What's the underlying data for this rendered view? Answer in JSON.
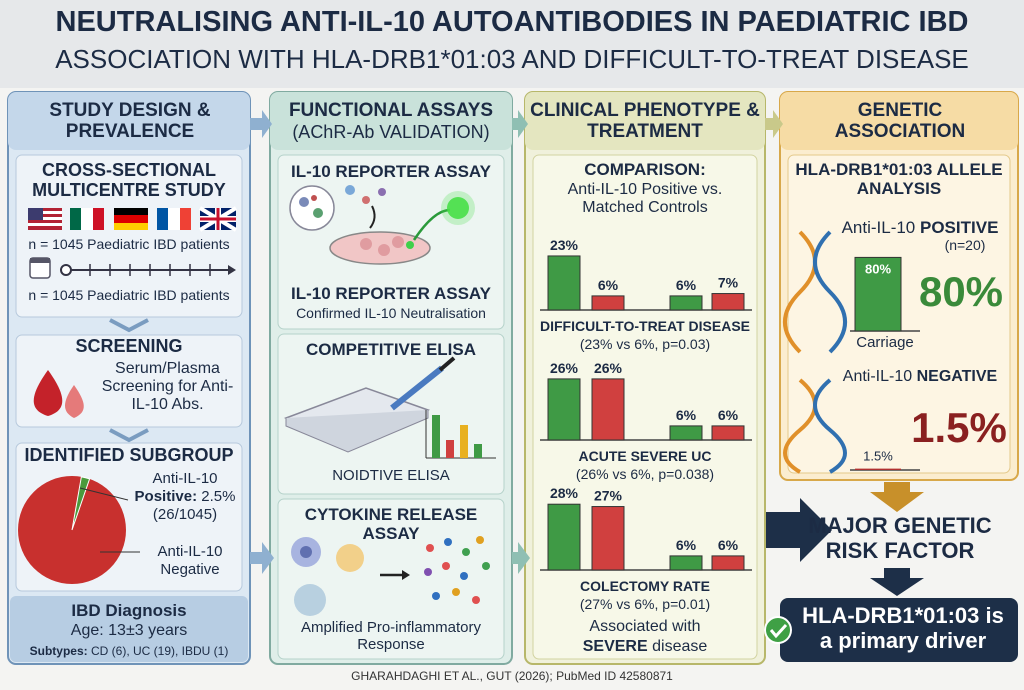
{
  "header": {
    "title": "NEUTRALISING ANTI-IL-10 AUTOANTIBODIES IN PAEDIATRIC IBD",
    "subtitle": "ASSOCIATION WITH HLA-DRB1*01:03 AND DIFFICULT-TO-TREAT DISEASE"
  },
  "study": {
    "title": "STUDY DESIGN & PREVALENCE",
    "design": {
      "title": "CROSS-SECTIONAL MULTICENTRE STUDY",
      "cohort": "n = 1045 Paediatric IBD patients",
      "timeline": "n = 1045 Paediatric IBD patients"
    },
    "screening": {
      "title": "SCREENING",
      "text": "Serum/Plasma Screening for Anti-IL-10 Abs."
    },
    "subgroup": {
      "title": "IDENTIFIED SUBGROUP",
      "positive_name": "Anti-IL-10",
      "positive_word": "Positive:",
      "positive_value": 2.5,
      "positive_label": "2.5%",
      "positive_count": "(26/1045)",
      "negative_label": "Anti-IL-10 Negative",
      "positive_color": "#4a9a3c",
      "negative_color": "#c8302e"
    },
    "diagnosis": {
      "title": "IBD Diagnosis",
      "age": "Age: 13±3 years",
      "subtypes_label": "Subtypes:",
      "subtypes": "CD (6), UC (19), IBDU (1)"
    }
  },
  "assays": {
    "title": "FUNCTIONAL ASSAYS",
    "subtitle": "(AChR-Ab VALIDATION)",
    "reporter": {
      "title": "IL-10 REPORTER ASSAY",
      "caption": "IL-10 REPORTER ASSAY",
      "note": "Confirmed IL-10 Neutralisation"
    },
    "elisa": {
      "title": "COMPETITIVE ELISA",
      "caption": "NOIDTIVE ELISA"
    },
    "cytokine": {
      "title": "CYTOKINE RELEASE ASSAY",
      "note": "Amplified Pro-inflammatory Response"
    }
  },
  "clinical": {
    "title": "CLINICAL PHENOTYPE & TREATMENT",
    "comparison_title": "COMPARISON:",
    "comparison_text": "Anti-IL-10 Positive vs. Matched Controls",
    "colors": [
      "#3f9a45",
      "#d0403f",
      "#3f9a45",
      "#d0403f"
    ],
    "groups": [
      {
        "values": [
          23,
          6,
          6,
          7
        ],
        "value_labels": [
          "23%",
          "6%",
          "6%",
          "7%"
        ],
        "title": "DIFFICULT-TO-TREAT DISEASE",
        "note": "(23% vs 6%, p=0.03)"
      },
      {
        "values": [
          26,
          26,
          6,
          6
        ],
        "value_labels": [
          "26%",
          "26%",
          "6%",
          "6%"
        ],
        "title": "ACUTE SEVERE UC",
        "note": "(26% vs 6%, p=0.038)"
      },
      {
        "values": [
          28,
          27,
          6,
          6
        ],
        "value_labels": [
          "28%",
          "27%",
          "6%",
          "6%"
        ],
        "title": "COLECTOMY RATE",
        "note": "(27% vs 6%, p=0.01)"
      }
    ],
    "footer_a": "Associated with",
    "footer_b": "SEVERE",
    "footer_c": "disease"
  },
  "genetic": {
    "title": "GENETIC ASSOCIATION",
    "subtitle": "HLA-DRB1*01:03 ALLELE ANALYSIS",
    "positive": {
      "name": "Anti-IL-10",
      "status": "POSITIVE",
      "n": "(n=20)",
      "value": 80,
      "label": "80%",
      "caption": "Carriage",
      "color": "#3f9a45"
    },
    "negative": {
      "name": "Anti-IL-10",
      "status": "NEGATIVE",
      "value": 1.5,
      "label": "1.5%",
      "color": "#b03030"
    },
    "conclusion": "MAJOR GENETIC RISK FACTOR",
    "driver": "HLA-DRB1*01:03 is a primary driver"
  },
  "footer": "GHARAHDAGHI ET AL., GUT (2026); PubMed ID 42580871"
}
